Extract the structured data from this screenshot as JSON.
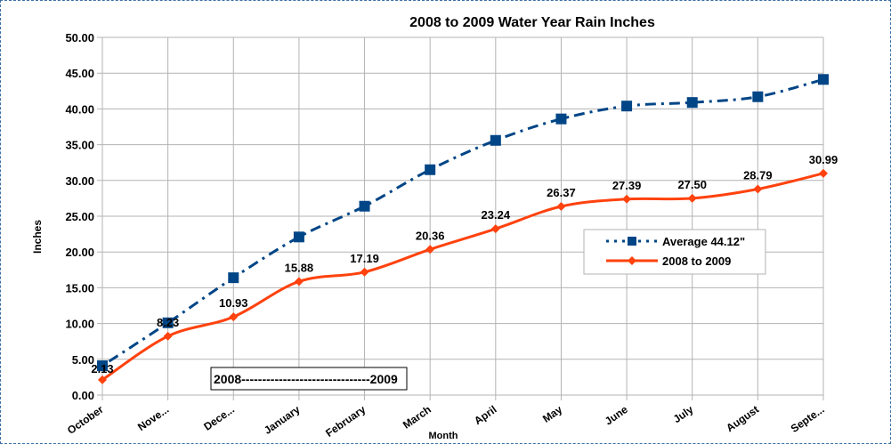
{
  "chart_data": {
    "type": "line",
    "title": "2008 to 2009 Water Year Rain Inches",
    "xlabel": "Month",
    "ylabel": "Inches",
    "ylim": [
      0,
      50
    ],
    "yticks": [
      "0.00",
      "5.00",
      "10.00",
      "15.00",
      "20.00",
      "25.00",
      "30.00",
      "35.00",
      "40.00",
      "45.00",
      "50.00"
    ],
    "categories": [
      "October",
      "Nove...",
      "Dece...",
      "January",
      "February",
      "March",
      "April",
      "May",
      "June",
      "July",
      "August",
      "Septe..."
    ],
    "grid": true,
    "legend_position": "right",
    "annotation": "2008-------------------------------2009",
    "series": [
      {
        "name": "Average 44.12\"",
        "color": "#004586",
        "style": "dotted",
        "marker": "square",
        "values": [
          4.1,
          10.1,
          16.4,
          22.1,
          26.4,
          31.5,
          35.6,
          38.6,
          40.4,
          40.9,
          41.7,
          44.12
        ]
      },
      {
        "name": "2008 to 2009",
        "color": "#ff420e",
        "style": "solid",
        "marker": "diamond",
        "values": [
          2.13,
          8.23,
          10.93,
          15.88,
          17.19,
          20.36,
          23.24,
          26.37,
          27.39,
          27.5,
          28.79,
          30.99
        ],
        "labels": [
          "2.13",
          "8.23",
          "10.93",
          "15.88",
          "17.19",
          "20.36",
          "23.24",
          "26.37",
          "27.39",
          "27.50",
          "28.79",
          "30.99"
        ]
      }
    ]
  }
}
